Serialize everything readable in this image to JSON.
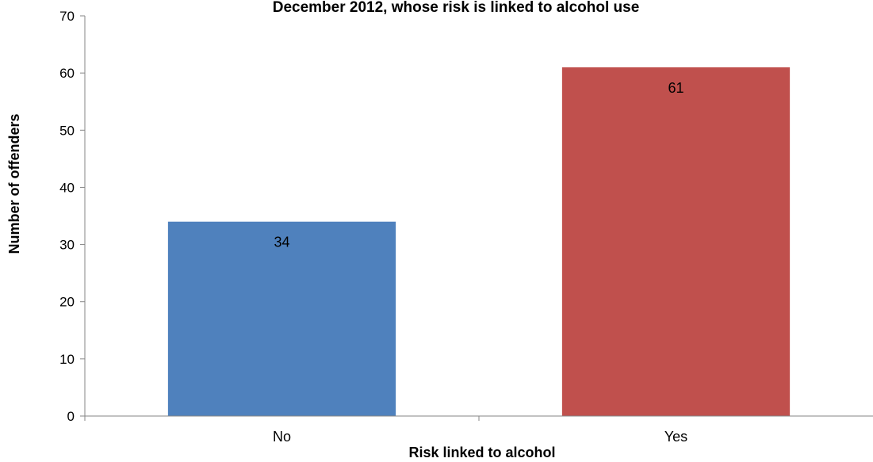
{
  "chart_data": {
    "type": "bar",
    "title": "December 2012, whose risk is linked to alcohol use",
    "xlabel": "Risk linked to alcohol",
    "ylabel": "Number of offenders",
    "categories": [
      "No",
      "Yes"
    ],
    "values": [
      34,
      61
    ],
    "data_labels": [
      "34",
      "61"
    ],
    "ylim": [
      0,
      70
    ],
    "yticks": [
      "0",
      "10",
      "20",
      "30",
      "40",
      "50",
      "60",
      "70"
    ],
    "colors": [
      "#4f81bd",
      "#c0504d"
    ],
    "grid": false,
    "legend": "none"
  }
}
